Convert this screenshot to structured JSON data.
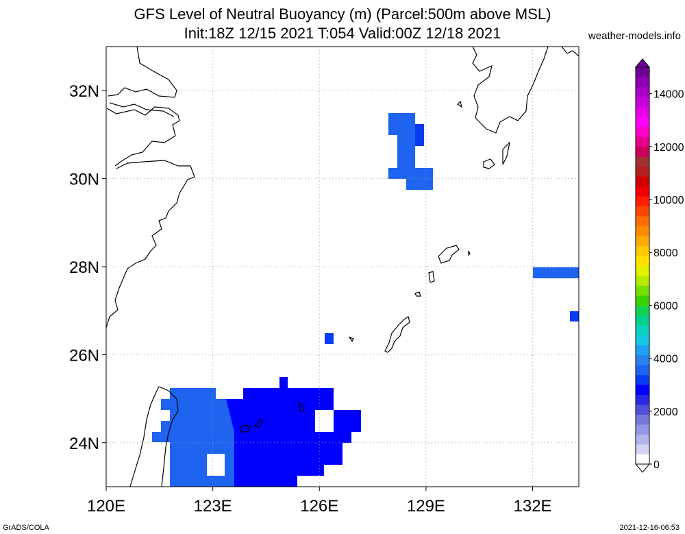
{
  "header": {
    "title_line1": "GFS Level of Neutral Buoyancy (m) (Parcel:500m above MSL)",
    "title_line2": "Init:18Z 12/15 2021 T:054 Valid:00Z 12/18 2021",
    "source": "weather-models.info"
  },
  "map": {
    "lon_range": [
      120,
      133.3
    ],
    "lat_range": [
      23,
      33
    ],
    "lon_ticks": [
      "120E",
      "123E",
      "126E",
      "129E",
      "132E"
    ],
    "lat_ticks": [
      "24N",
      "26N",
      "28N",
      "30N",
      "32N"
    ],
    "grid": "dotted"
  },
  "colorbar": {
    "labels": [
      "0",
      "2000",
      "4000",
      "6000",
      "8000",
      "10000",
      "12000",
      "14000"
    ],
    "colors": [
      "#ffffff",
      "#d4d4f6",
      "#b4b4ee",
      "#9696e6",
      "#7878dc",
      "#5050dc",
      "#2828e6",
      "#0000ff",
      "#0a3cf5",
      "#1e64f0",
      "#2882f0",
      "#1ea0f5",
      "#14c8e6",
      "#0ad2be",
      "#00d28c",
      "#14d250",
      "#3cd200",
      "#78e100",
      "#b4eb00",
      "#e6f000",
      "#ffe100",
      "#ffc800",
      "#ffaa00",
      "#ff8c00",
      "#ff6e00",
      "#ff4600",
      "#ff1e00",
      "#f00000",
      "#d20000",
      "#b41e1e",
      "#a03232",
      "#c8005a",
      "#e6008c",
      "#ff00c8",
      "#ff00ff",
      "#e600e6",
      "#c800dc",
      "#aa00c8",
      "#8c00b4",
      "#6e0096"
    ]
  },
  "footer": {
    "left": "GrADS/COLA",
    "right": "2021-12-16-06:53"
  }
}
